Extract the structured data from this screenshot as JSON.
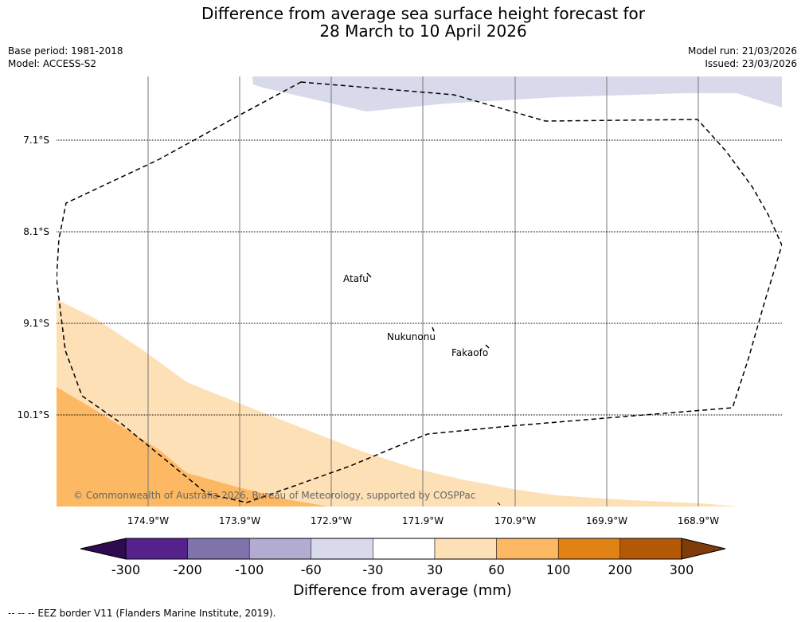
{
  "title": {
    "line1": "Difference from average sea surface height forecast for",
    "line2": "28 March to 10 April 2026"
  },
  "meta_left": {
    "base_period": "Base period: 1981-2018",
    "model": "Model: ACCESS-S2"
  },
  "meta_right": {
    "model_run": "Model run: 21/03/2026",
    "issued": "Issued: 23/03/2026"
  },
  "map": {
    "lat_labels": [
      "7.1°S",
      "8.1°S",
      "9.1°S",
      "10.1°S"
    ],
    "lon_labels": [
      "174.9°W",
      "173.9°W",
      "172.9°W",
      "171.9°W",
      "170.9°W",
      "169.9°W",
      "168.9°W"
    ],
    "places": [
      "Atafu",
      "Nukunonu",
      "Fakaofo"
    ],
    "copyright": "© Commonwealth of Australia 2026, Bureau of Meteorology, supported by COSPPac"
  },
  "colorbar": {
    "title": "Difference from average (mm)",
    "ticks": [
      "-300",
      "-200",
      "-100",
      "-60",
      "-30",
      "30",
      "60",
      "100",
      "200",
      "300"
    ],
    "colors": {
      "lt_300": "#2d0b4e",
      "n300_n200": "#54228a",
      "n200_n100": "#8073ac",
      "n100_n60": "#b2abd2",
      "n60_n30": "#d8daeb",
      "n30_30": "#ffffff",
      "p30_p60": "#fee0b6",
      "p60_p100": "#fdb863",
      "p100_p200": "#e08214",
      "p200_p300": "#b35806",
      "gt_300": "#7f3b08"
    }
  },
  "footnote": "--  --  -- EEZ border V11 (Flanders Marine Institute, 2019)."
}
